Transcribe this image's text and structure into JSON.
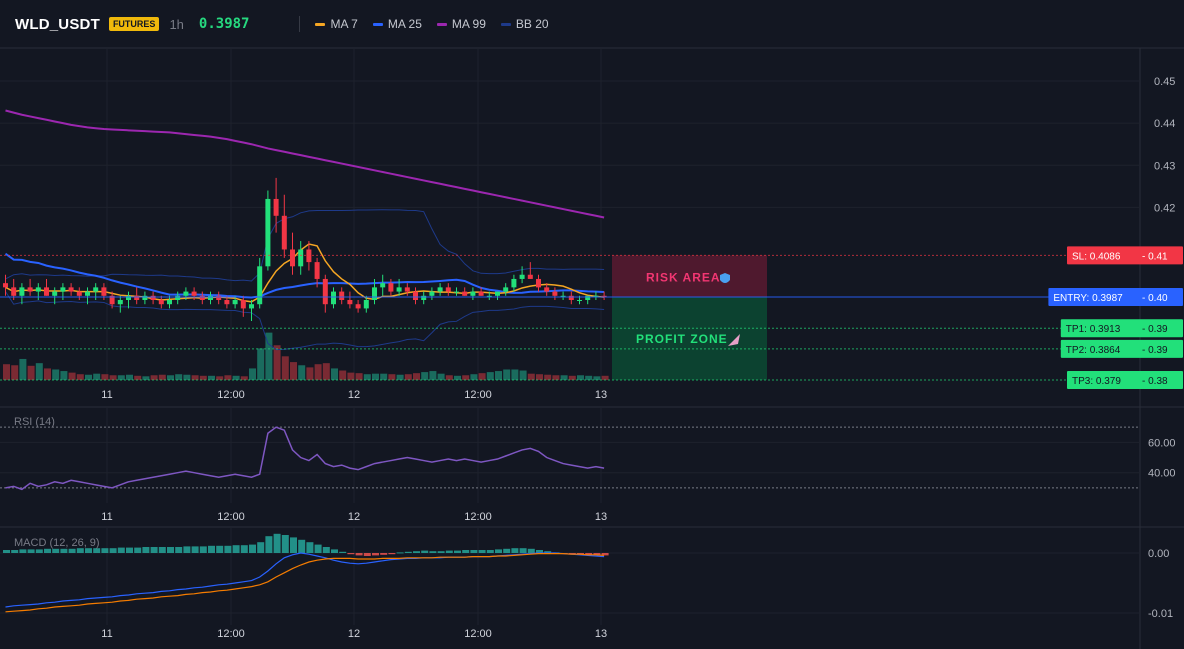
{
  "header": {
    "symbol": "WLD_USDT",
    "badge": "FUTURES",
    "timeframe": "1h",
    "price": "0.3987",
    "legend": [
      {
        "label": "MA 7",
        "color": "#f5a623"
      },
      {
        "label": "MA 25",
        "color": "#2962ff"
      },
      {
        "label": "MA 99",
        "color": "#9c27b0"
      },
      {
        "label": "BB 20",
        "color": "#1e3a8a"
      }
    ]
  },
  "zones": {
    "risk_label": "RISK AREA",
    "profit_label": "PROFIT ZONE"
  },
  "levels": [
    {
      "id": "sl",
      "label": "SL: 0.4086",
      "axis": "0.41",
      "value": 0.4086,
      "color": "#f23645"
    },
    {
      "id": "entry",
      "label": "ENTRY: 0.3987",
      "axis": "0.40",
      "value": 0.3987,
      "color": "#2962ff"
    },
    {
      "id": "tp1",
      "label": "TP1: 0.3913",
      "axis": "0.39",
      "value": 0.3913,
      "color": "#22e07a"
    },
    {
      "id": "tp2",
      "label": "TP2: 0.3864",
      "axis": "0.39",
      "value": 0.3864,
      "color": "#22e07a"
    },
    {
      "id": "tp3",
      "label": "TP3: 0.379",
      "axis": "0.38",
      "value": 0.379,
      "color": "#22e07a"
    }
  ],
  "chart_data": [
    {
      "type": "candlestick",
      "price_ticks": [
        "0.45",
        "0.44",
        "0.43",
        "0.42"
      ],
      "x_ticks": [
        "11",
        "12:00",
        "12",
        "12:00",
        "13"
      ],
      "ylim": [
        0.379,
        0.455
      ],
      "candles": [
        [
          0.402,
          0.404,
          0.399,
          0.401
        ],
        [
          0.401,
          0.403,
          0.398,
          0.399
        ],
        [
          0.399,
          0.402,
          0.397,
          0.401
        ],
        [
          0.401,
          0.403,
          0.399,
          0.4
        ],
        [
          0.4,
          0.402,
          0.398,
          0.401
        ],
        [
          0.401,
          0.403,
          0.399,
          0.399
        ],
        [
          0.399,
          0.401,
          0.397,
          0.4
        ],
        [
          0.4,
          0.402,
          0.398,
          0.401
        ],
        [
          0.401,
          0.402,
          0.399,
          0.4
        ],
        [
          0.4,
          0.401,
          0.398,
          0.399
        ],
        [
          0.399,
          0.401,
          0.397,
          0.4
        ],
        [
          0.4,
          0.402,
          0.398,
          0.401
        ],
        [
          0.401,
          0.402,
          0.398,
          0.399
        ],
        [
          0.399,
          0.4,
          0.396,
          0.397
        ],
        [
          0.397,
          0.399,
          0.395,
          0.398
        ],
        [
          0.398,
          0.4,
          0.396,
          0.399
        ],
        [
          0.399,
          0.401,
          0.397,
          0.398
        ],
        [
          0.398,
          0.4,
          0.397,
          0.399
        ],
        [
          0.399,
          0.4,
          0.397,
          0.398
        ],
        [
          0.398,
          0.399,
          0.396,
          0.397
        ],
        [
          0.397,
          0.399,
          0.396,
          0.398
        ],
        [
          0.398,
          0.4,
          0.397,
          0.399
        ],
        [
          0.399,
          0.401,
          0.398,
          0.4
        ],
        [
          0.4,
          0.401,
          0.398,
          0.399
        ],
        [
          0.399,
          0.4,
          0.397,
          0.398
        ],
        [
          0.398,
          0.4,
          0.397,
          0.399
        ],
        [
          0.399,
          0.4,
          0.397,
          0.398
        ],
        [
          0.398,
          0.399,
          0.396,
          0.397
        ],
        [
          0.397,
          0.399,
          0.396,
          0.398
        ],
        [
          0.398,
          0.399,
          0.394,
          0.396
        ],
        [
          0.396,
          0.398,
          0.393,
          0.397
        ],
        [
          0.397,
          0.408,
          0.396,
          0.406
        ],
        [
          0.406,
          0.424,
          0.405,
          0.422
        ],
        [
          0.422,
          0.427,
          0.414,
          0.418
        ],
        [
          0.418,
          0.423,
          0.408,
          0.41
        ],
        [
          0.41,
          0.414,
          0.404,
          0.406
        ],
        [
          0.406,
          0.412,
          0.404,
          0.41
        ],
        [
          0.41,
          0.412,
          0.405,
          0.407
        ],
        [
          0.407,
          0.408,
          0.401,
          0.403
        ],
        [
          0.403,
          0.404,
          0.395,
          0.397
        ],
        [
          0.397,
          0.401,
          0.396,
          0.4
        ],
        [
          0.4,
          0.401,
          0.397,
          0.398
        ],
        [
          0.398,
          0.4,
          0.396,
          0.397
        ],
        [
          0.397,
          0.398,
          0.395,
          0.396
        ],
        [
          0.396,
          0.399,
          0.395,
          0.398
        ],
        [
          0.398,
          0.403,
          0.397,
          0.401
        ],
        [
          0.401,
          0.404,
          0.399,
          0.402
        ],
        [
          0.402,
          0.403,
          0.399,
          0.4
        ],
        [
          0.4,
          0.403,
          0.399,
          0.401
        ],
        [
          0.401,
          0.402,
          0.399,
          0.4
        ],
        [
          0.4,
          0.401,
          0.397,
          0.398
        ],
        [
          0.398,
          0.4,
          0.397,
          0.399
        ],
        [
          0.399,
          0.401,
          0.398,
          0.4
        ],
        [
          0.4,
          0.402,
          0.399,
          0.401
        ],
        [
          0.401,
          0.402,
          0.399,
          0.4
        ],
        [
          0.4,
          0.401,
          0.399,
          0.4
        ],
        [
          0.4,
          0.401,
          0.399,
          0.399
        ],
        [
          0.399,
          0.401,
          0.398,
          0.4
        ],
        [
          0.4,
          0.401,
          0.399,
          0.399
        ],
        [
          0.399,
          0.4,
          0.398,
          0.399
        ],
        [
          0.399,
          0.4,
          0.398,
          0.4
        ],
        [
          0.4,
          0.402,
          0.399,
          0.401
        ],
        [
          0.401,
          0.404,
          0.4,
          0.403
        ],
        [
          0.403,
          0.406,
          0.402,
          0.404
        ],
        [
          0.404,
          0.407,
          0.403,
          0.403
        ],
        [
          0.403,
          0.404,
          0.4,
          0.401
        ],
        [
          0.401,
          0.402,
          0.399,
          0.4
        ],
        [
          0.4,
          0.401,
          0.398,
          0.399
        ],
        [
          0.399,
          0.4,
          0.398,
          0.399
        ],
        [
          0.399,
          0.4,
          0.397,
          0.398
        ],
        [
          0.398,
          0.399,
          0.397,
          0.398
        ],
        [
          0.398,
          0.399,
          0.397,
          0.399
        ],
        [
          0.399,
          0.4,
          0.398,
          0.399
        ],
        [
          0.399,
          0.4,
          0.398,
          0.3987
        ]
      ],
      "volume": [
        30,
        28,
        40,
        27,
        32,
        22,
        20,
        17,
        14,
        11,
        10,
        12,
        11,
        9,
        9,
        10,
        8,
        7,
        9,
        10,
        9,
        11,
        10,
        9,
        8,
        8,
        7,
        9,
        8,
        7,
        22,
        60,
        90,
        66,
        45,
        34,
        28,
        24,
        30,
        32,
        22,
        18,
        14,
        13,
        11,
        12,
        12,
        11,
        10,
        11,
        13,
        15,
        17,
        12,
        9,
        8,
        9,
        11,
        13,
        15,
        17,
        20,
        20,
        18,
        12,
        11,
        10,
        9,
        9,
        8,
        9,
        8,
        7,
        8
      ],
      "ma7_color": "#f5a623",
      "ma25_color": "#2962ff",
      "ma99": [
        0.443,
        0.4425,
        0.442,
        0.4416,
        0.4412,
        0.4408,
        0.4404,
        0.44,
        0.4396,
        0.4393,
        0.439,
        0.4388,
        0.4386,
        0.4385,
        0.4384,
        0.4383,
        0.4382,
        0.4381,
        0.438,
        0.4379,
        0.4378,
        0.4376,
        0.4374,
        0.4372,
        0.437,
        0.4368,
        0.4365,
        0.4362,
        0.4358,
        0.4354,
        0.435,
        0.4345,
        0.434,
        0.4336,
        0.4332,
        0.4328,
        0.4324,
        0.432,
        0.4316,
        0.4312,
        0.4308,
        0.4304,
        0.43,
        0.4296,
        0.4292,
        0.4288,
        0.4284,
        0.428,
        0.4276,
        0.4272,
        0.4268,
        0.4264,
        0.426,
        0.4256,
        0.4252,
        0.4248,
        0.4244,
        0.424,
        0.4236,
        0.4232,
        0.4228,
        0.4224,
        0.422,
        0.4216,
        0.4212,
        0.4208,
        0.4204,
        0.42,
        0.4196,
        0.4192,
        0.4188,
        0.4184,
        0.418,
        0.4176
      ],
      "bb_color": "#1e3a8a"
    },
    {
      "type": "line",
      "title": "RSI (14)",
      "y_ticks": [
        "60.00",
        "40.00"
      ],
      "ylim": [
        22,
        80
      ],
      "bands": [
        70,
        30
      ],
      "values": [
        30,
        31,
        29,
        33,
        31,
        32,
        34,
        33,
        35,
        34,
        33,
        32,
        31,
        30,
        32,
        34,
        35,
        36,
        37,
        38,
        39,
        40,
        41,
        40,
        39,
        38,
        37,
        38,
        39,
        38,
        37,
        39,
        66,
        70,
        68,
        55,
        50,
        48,
        52,
        46,
        44,
        45,
        43,
        42,
        44,
        46,
        47,
        48,
        49,
        50,
        49,
        48,
        47,
        48,
        49,
        48,
        49,
        48,
        47,
        48,
        49,
        51,
        53,
        55,
        56,
        54,
        50,
        48,
        46,
        45,
        44,
        43,
        44,
        43
      ],
      "color": "#7e57c2"
    },
    {
      "type": "histogram",
      "title": "MACD (12, 26, 9)",
      "y_ticks": [
        "0.00",
        "-0.01"
      ],
      "ylim": [
        -0.0115,
        0.0035
      ],
      "histogram": [
        0.0005,
        0.0005,
        0.0006,
        0.0006,
        0.0006,
        0.0007,
        0.0007,
        0.0007,
        0.0007,
        0.0008,
        0.0008,
        0.0008,
        0.0008,
        0.0008,
        0.0009,
        0.0009,
        0.0009,
        0.001,
        0.001,
        0.001,
        0.001,
        0.001,
        0.0011,
        0.0011,
        0.0011,
        0.0012,
        0.0012,
        0.0012,
        0.0013,
        0.0013,
        0.0014,
        0.0018,
        0.0028,
        0.0032,
        0.003,
        0.0026,
        0.0022,
        0.0018,
        0.0014,
        0.001,
        0.0006,
        0.0002,
        -0.0002,
        -0.0004,
        -0.0005,
        -0.0004,
        -0.0003,
        -0.0002,
        0.0001,
        0.0002,
        0.0003,
        0.0004,
        0.0003,
        0.0003,
        0.0004,
        0.0004,
        0.0005,
        0.0005,
        0.0005,
        0.0005,
        0.0006,
        0.0007,
        0.0008,
        0.0008,
        0.0007,
        0.0005,
        0.0003,
        0.0001,
        -0.0001,
        -0.0002,
        -0.0003,
        -0.0003,
        -0.0003,
        -0.0004
      ],
      "macd": [
        -0.009,
        -0.0088,
        -0.0087,
        -0.0086,
        -0.0085,
        -0.0083,
        -0.0082,
        -0.008,
        -0.0079,
        -0.0078,
        -0.0076,
        -0.0075,
        -0.0074,
        -0.0073,
        -0.0071,
        -0.007,
        -0.0068,
        -0.0067,
        -0.0066,
        -0.0064,
        -0.0063,
        -0.0061,
        -0.006,
        -0.0058,
        -0.0057,
        -0.0055,
        -0.0053,
        -0.0052,
        -0.005,
        -0.0048,
        -0.0046,
        -0.004,
        -0.003,
        -0.0018,
        -0.0008,
        -0.0003,
        0.0,
        -0.0002,
        -0.0005,
        -0.0008,
        -0.0012,
        -0.0015,
        -0.0017,
        -0.0018,
        -0.0017,
        -0.0015,
        -0.0013,
        -0.0011,
        -0.001,
        -0.0009,
        -0.0009,
        -0.0008,
        -0.0008,
        -0.0008,
        -0.0007,
        -0.0007,
        -0.0007,
        -0.0006,
        -0.0006,
        -0.0006,
        -0.0005,
        -0.0004,
        -0.0003,
        -0.0002,
        -0.0001,
        0.0,
        0.0,
        0.0,
        -0.0001,
        -0.0002,
        -0.0003,
        -0.0004,
        -0.0005,
        -0.0006
      ],
      "signal": [
        -0.0098,
        -0.0097,
        -0.0096,
        -0.0095,
        -0.0093,
        -0.0092,
        -0.009,
        -0.0089,
        -0.0088,
        -0.0087,
        -0.0085,
        -0.0084,
        -0.0083,
        -0.0082,
        -0.008,
        -0.0079,
        -0.0077,
        -0.0076,
        -0.0075,
        -0.0073,
        -0.0072,
        -0.0071,
        -0.0069,
        -0.0068,
        -0.0066,
        -0.0065,
        -0.0063,
        -0.0062,
        -0.006,
        -0.0058,
        -0.0056,
        -0.0053,
        -0.0048,
        -0.004,
        -0.0033,
        -0.0026,
        -0.002,
        -0.0015,
        -0.0012,
        -0.001,
        -0.0009,
        -0.0009,
        -0.0009,
        -0.001,
        -0.001,
        -0.001,
        -0.0009,
        -0.0009,
        -0.0009,
        -0.0008,
        -0.0008,
        -0.0008,
        -0.0008,
        -0.0007,
        -0.0007,
        -0.0007,
        -0.0007,
        -0.0006,
        -0.0006,
        -0.0006,
        -0.0005,
        -0.0005,
        -0.0004,
        -0.0003,
        -0.0002,
        -0.0001,
        -0.0001,
        -0.0001,
        -0.0001,
        -0.0002,
        -0.0002,
        -0.0003,
        -0.0003,
        -0.0004
      ],
      "macd_color": "#2962ff",
      "signal_color": "#f57c00"
    }
  ],
  "colors": {
    "up": "#22e07a",
    "down": "#f23645",
    "vol_up": "#1a6b5e",
    "vol_down": "#7a2a33",
    "macd_pos": "#26a69a",
    "macd_neg": "#ef5350"
  }
}
